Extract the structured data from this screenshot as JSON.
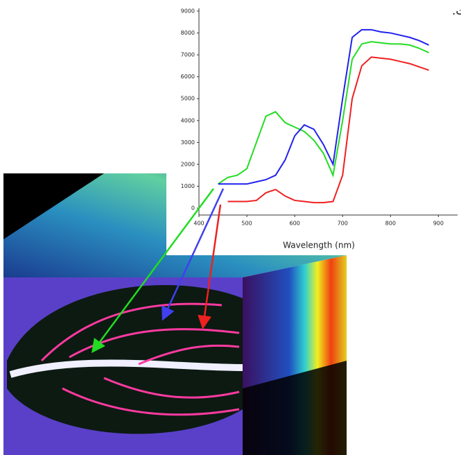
{
  "chart_data": {
    "type": "line",
    "caption": "سل مختلف است.",
    "x_label": "Wavelength (nm)",
    "x": [
      440,
      460,
      480,
      500,
      520,
      540,
      560,
      580,
      600,
      620,
      640,
      660,
      680,
      700,
      720,
      740,
      760,
      780,
      800,
      820,
      840,
      860,
      880
    ],
    "series": [
      {
        "color": "#22dd22",
        "values": [
          1100,
          1400,
          1500,
          1800,
          3000,
          4200,
          4400,
          3900,
          3700,
          3500,
          3100,
          2500,
          1500,
          4000,
          6800,
          7500,
          7600,
          7550,
          7500,
          7500,
          7450,
          7300,
          7100
        ]
      },
      {
        "color": "#2020ee",
        "values": [
          1100,
          1100,
          1100,
          1100,
          1200,
          1300,
          1500,
          2200,
          3300,
          3800,
          3600,
          2900,
          2000,
          5000,
          7800,
          8150,
          8150,
          8050,
          8000,
          7900,
          7800,
          7650,
          7450
        ]
      },
      {
        "color": "#ee2020",
        "values": [
          null,
          300,
          300,
          300,
          350,
          700,
          850,
          550,
          350,
          300,
          250,
          250,
          300,
          1500,
          5000,
          6500,
          6900,
          6850,
          6800,
          6700,
          6600,
          6450,
          6300
        ]
      }
    ],
    "xlim": [
      400,
      940
    ],
    "ylim": [
      0,
      9000
    ],
    "xticks": [
      400,
      500,
      600,
      700,
      800,
      900
    ],
    "yticks": [
      0,
      1000,
      2000,
      3000,
      4000,
      5000,
      6000,
      7000,
      8000,
      9000
    ]
  }
}
